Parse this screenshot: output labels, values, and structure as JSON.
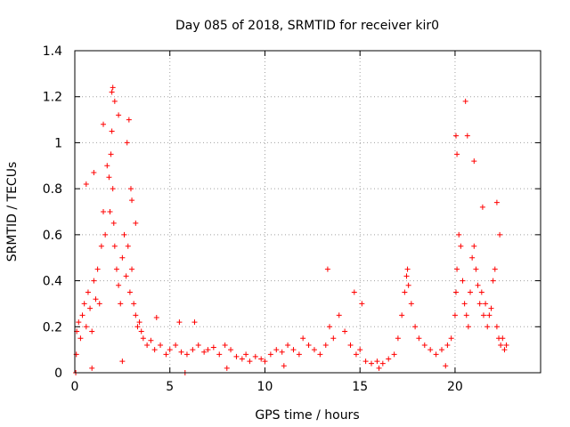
{
  "chart_data": {
    "type": "scatter",
    "title": "Day 085 of 2018, SRMTID for receiver kir0",
    "xlabel": "GPS time / hours",
    "ylabel": "SRMTID / TECUs",
    "xlim": [
      0,
      24.5
    ],
    "ylim": [
      0,
      1.4
    ],
    "x_ticks": [
      0,
      5,
      10,
      15,
      20
    ],
    "x_tick_labels": [
      "0",
      "5",
      "10",
      "15",
      "20"
    ],
    "y_ticks": [
      0,
      0.2,
      0.4,
      0.6,
      0.8,
      1.0,
      1.2,
      1.4
    ],
    "y_tick_labels": [
      "0",
      "0.2",
      "0.4",
      "0.6",
      "0.8",
      "1",
      "1.2",
      "1.4"
    ],
    "grid": true,
    "marker": "+",
    "color": "#ff0000",
    "series": [
      {
        "name": "SRMTID",
        "x": [
          0.05,
          0.1,
          0.2,
          0.3,
          0.4,
          0.5,
          0.6,
          0.7,
          0.8,
          0.9,
          1.0,
          1.1,
          1.2,
          1.3,
          1.4,
          1.5,
          1.6,
          1.7,
          1.8,
          1.85,
          1.9,
          1.95,
          2.0,
          2.05,
          2.1,
          2.2,
          2.3,
          2.4,
          2.5,
          2.6,
          2.7,
          2.8,
          2.9,
          3.0,
          3.1,
          3.2,
          3.3,
          3.4,
          3.5,
          3.6,
          3.8,
          4.0,
          4.2,
          4.5,
          4.8,
          5.0,
          5.3,
          5.6,
          5.9,
          6.2,
          6.5,
          6.8,
          7.0,
          7.3,
          7.6,
          7.9,
          8.2,
          8.5,
          8.8,
          9.0,
          9.2,
          9.5,
          9.8,
          10.0,
          10.3,
          10.6,
          10.9,
          11.2,
          11.5,
          11.8,
          12.0,
          12.3,
          12.6,
          12.9,
          13.2,
          13.4,
          13.6,
          13.9,
          14.2,
          14.5,
          14.8,
          15.0,
          15.3,
          15.6,
          15.9,
          16.2,
          16.5,
          16.8,
          17.0,
          17.2,
          17.35,
          17.45,
          17.55,
          17.7,
          17.9,
          18.1,
          18.4,
          18.7,
          19.0,
          19.3,
          19.6,
          19.8,
          20.0,
          20.05,
          20.1,
          20.2,
          20.3,
          20.4,
          20.5,
          20.6,
          20.7,
          20.8,
          20.9,
          21.0,
          21.1,
          21.2,
          21.3,
          21.4,
          21.5,
          21.6,
          21.7,
          21.8,
          21.9,
          22.0,
          22.1,
          22.2,
          22.3,
          22.4,
          22.5,
          22.6,
          22.7,
          0.08,
          0.6,
          1.0,
          1.5,
          1.95,
          2.0,
          2.1,
          2.3,
          2.75,
          2.85,
          2.95,
          3.0,
          3.2,
          4.3,
          5.5,
          6.3,
          13.3,
          14.7,
          15.1,
          17.5,
          20.05,
          20.1,
          20.55,
          20.65,
          21.0,
          21.45,
          22.2,
          22.35,
          0.9,
          2.5,
          5.8,
          8.0,
          11.0,
          16.0,
          19.5
        ],
        "y": [
          0.0,
          0.18,
          0.22,
          0.15,
          0.25,
          0.3,
          0.2,
          0.35,
          0.28,
          0.18,
          0.4,
          0.32,
          0.45,
          0.3,
          0.55,
          0.7,
          0.6,
          0.9,
          0.85,
          0.7,
          0.95,
          1.05,
          0.8,
          0.65,
          0.55,
          0.45,
          0.38,
          0.3,
          0.5,
          0.6,
          0.42,
          0.55,
          0.35,
          0.45,
          0.3,
          0.25,
          0.2,
          0.22,
          0.18,
          0.15,
          0.12,
          0.14,
          0.1,
          0.12,
          0.08,
          0.1,
          0.12,
          0.09,
          0.08,
          0.1,
          0.12,
          0.09,
          0.1,
          0.11,
          0.08,
          0.12,
          0.1,
          0.07,
          0.06,
          0.08,
          0.05,
          0.07,
          0.06,
          0.05,
          0.08,
          0.1,
          0.09,
          0.12,
          0.1,
          0.08,
          0.15,
          0.12,
          0.1,
          0.08,
          0.12,
          0.2,
          0.15,
          0.25,
          0.18,
          0.12,
          0.08,
          0.1,
          0.05,
          0.04,
          0.05,
          0.04,
          0.06,
          0.08,
          0.15,
          0.25,
          0.35,
          0.42,
          0.38,
          0.3,
          0.2,
          0.15,
          0.12,
          0.1,
          0.08,
          0.1,
          0.12,
          0.15,
          0.25,
          0.35,
          0.45,
          0.6,
          0.55,
          0.4,
          0.3,
          0.25,
          0.2,
          0.35,
          0.5,
          0.55,
          0.45,
          0.38,
          0.3,
          0.35,
          0.25,
          0.3,
          0.2,
          0.25,
          0.28,
          0.4,
          0.45,
          0.2,
          0.15,
          0.12,
          0.15,
          0.1,
          0.12,
          0.08,
          0.82,
          0.87,
          1.08,
          1.22,
          1.24,
          1.18,
          1.12,
          1.0,
          1.1,
          0.8,
          0.75,
          0.65,
          0.24,
          0.22,
          0.22,
          0.45,
          0.35,
          0.3,
          0.45,
          1.03,
          0.95,
          1.18,
          1.03,
          0.92,
          0.72,
          0.74,
          0.6,
          0.02,
          0.05,
          0.0,
          0.02,
          0.03,
          0.02,
          0.03
        ]
      }
    ]
  }
}
